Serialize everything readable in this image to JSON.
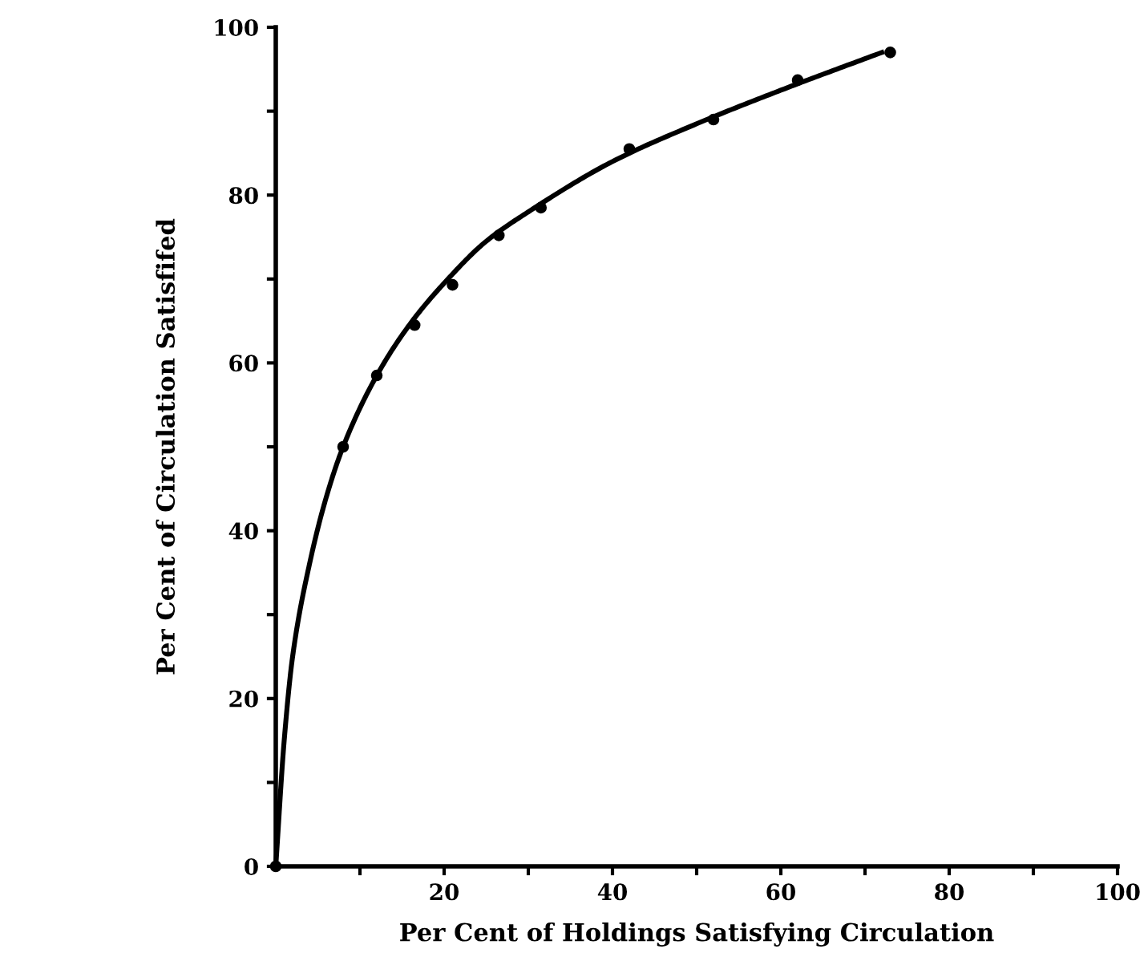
{
  "chart_data": {
    "type": "scatter",
    "xlabel": "Per Cent of Holdings Satisfying Circulation",
    "ylabel": "Per Cent of Circulation Satisfifed",
    "xlim": [
      0,
      100
    ],
    "ylim": [
      0,
      100
    ],
    "xticks": [
      {
        "value": 10,
        "label": null
      },
      20,
      {
        "value": 30,
        "label": null
      },
      40,
      {
        "value": 50,
        "label": null
      },
      60,
      {
        "value": 70,
        "label": null
      },
      80,
      {
        "value": 90,
        "label": null
      },
      100
    ],
    "yticks": [
      0,
      {
        "value": 10,
        "label": null
      },
      20,
      {
        "value": 30,
        "label": null
      },
      40,
      {
        "value": 50,
        "label": null
      },
      60,
      {
        "value": 70,
        "label": null
      },
      80,
      {
        "value": 90,
        "label": null
      },
      100
    ],
    "grid": false,
    "marker": "circle",
    "series": [
      {
        "color": "#000000",
        "x": [
          0,
          8,
          12,
          16.5,
          21,
          26.5,
          31.5,
          42,
          52,
          62,
          73
        ],
        "values": [
          0,
          50,
          58.5,
          64.5,
          69.3,
          75.2,
          78.5,
          85.5,
          89,
          93.7,
          97
        ]
      },
      {
        "type": "line",
        "color": "#000000",
        "marker": "none",
        "line_style": "solid",
        "x": [
          0,
          1,
          2,
          4,
          6,
          8,
          12,
          16,
          20,
          25,
          30,
          40,
          50,
          60,
          72
        ],
        "values": [
          0,
          15,
          25,
          36,
          44,
          50,
          58.5,
          64.7,
          69.5,
          74.5,
          78,
          84,
          88.5,
          92.5,
          97
        ]
      }
    ]
  }
}
